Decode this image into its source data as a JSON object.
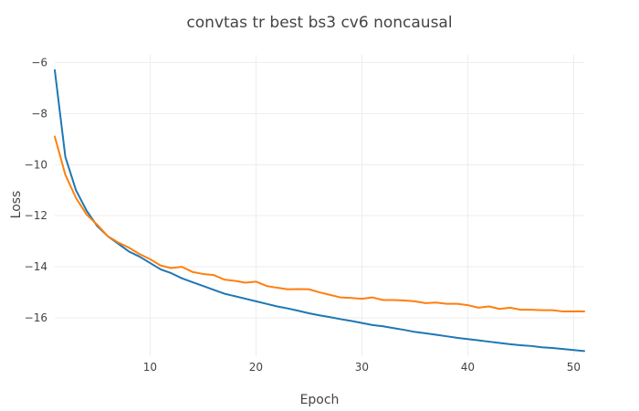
{
  "chart_data": {
    "type": "line",
    "title": "convtas tr best bs3 cv6 noncausal",
    "xlabel": "Epoch",
    "ylabel": "Loss",
    "xlim": [
      1,
      51
    ],
    "ylim": [
      -17.5,
      -5.7
    ],
    "x_ticks": [
      10,
      20,
      30,
      40,
      50
    ],
    "y_ticks": [
      -6,
      -8,
      -10,
      -12,
      -14,
      -16
    ],
    "grid": true,
    "legend": "none",
    "series": [
      {
        "color": "#1f77b4",
        "x": [
          1,
          2,
          3,
          4,
          5,
          6,
          7,
          8,
          9,
          10,
          11,
          12,
          13,
          14,
          15,
          16,
          17,
          18,
          19,
          20,
          21,
          22,
          23,
          24,
          25,
          26,
          27,
          28,
          29,
          30,
          31,
          32,
          33,
          34,
          35,
          36,
          37,
          38,
          39,
          40,
          41,
          42,
          43,
          44,
          45,
          46,
          47,
          48,
          49,
          50,
          51
        ],
        "y": [
          -6.3,
          -9.7,
          -11.0,
          -11.8,
          -12.4,
          -12.8,
          -13.1,
          -13.4,
          -13.6,
          -13.85,
          -14.1,
          -14.25,
          -14.45,
          -14.6,
          -14.75,
          -14.9,
          -15.05,
          -15.15,
          -15.25,
          -15.35,
          -15.45,
          -15.55,
          -15.63,
          -15.72,
          -15.82,
          -15.9,
          -15.97,
          -16.05,
          -16.12,
          -16.2,
          -16.28,
          -16.33,
          -16.4,
          -16.47,
          -16.55,
          -16.6,
          -16.66,
          -16.72,
          -16.78,
          -16.83,
          -16.88,
          -16.93,
          -16.98,
          -17.03,
          -17.07,
          -17.1,
          -17.15,
          -17.18,
          -17.22,
          -17.26,
          -17.3
        ]
      },
      {
        "color": "#ff7f0e",
        "x": [
          1,
          2,
          3,
          4,
          5,
          6,
          7,
          8,
          9,
          10,
          11,
          12,
          13,
          14,
          15,
          16,
          17,
          18,
          19,
          20,
          21,
          22,
          23,
          24,
          25,
          26,
          27,
          28,
          29,
          30,
          31,
          32,
          33,
          34,
          35,
          36,
          37,
          38,
          39,
          40,
          41,
          42,
          43,
          44,
          45,
          46,
          47,
          48,
          49,
          50,
          51
        ],
        "y": [
          -8.9,
          -10.4,
          -11.3,
          -11.95,
          -12.35,
          -12.8,
          -13.05,
          -13.25,
          -13.5,
          -13.7,
          -13.95,
          -14.05,
          -14.0,
          -14.2,
          -14.28,
          -14.32,
          -14.5,
          -14.55,
          -14.62,
          -14.58,
          -14.75,
          -14.82,
          -14.88,
          -14.87,
          -14.88,
          -15.0,
          -15.1,
          -15.2,
          -15.22,
          -15.25,
          -15.2,
          -15.3,
          -15.3,
          -15.32,
          -15.35,
          -15.42,
          -15.4,
          -15.45,
          -15.45,
          -15.5,
          -15.6,
          -15.55,
          -15.65,
          -15.6,
          -15.68,
          -15.68,
          -15.7,
          -15.7,
          -15.75,
          -15.75,
          -15.75
        ]
      }
    ]
  }
}
